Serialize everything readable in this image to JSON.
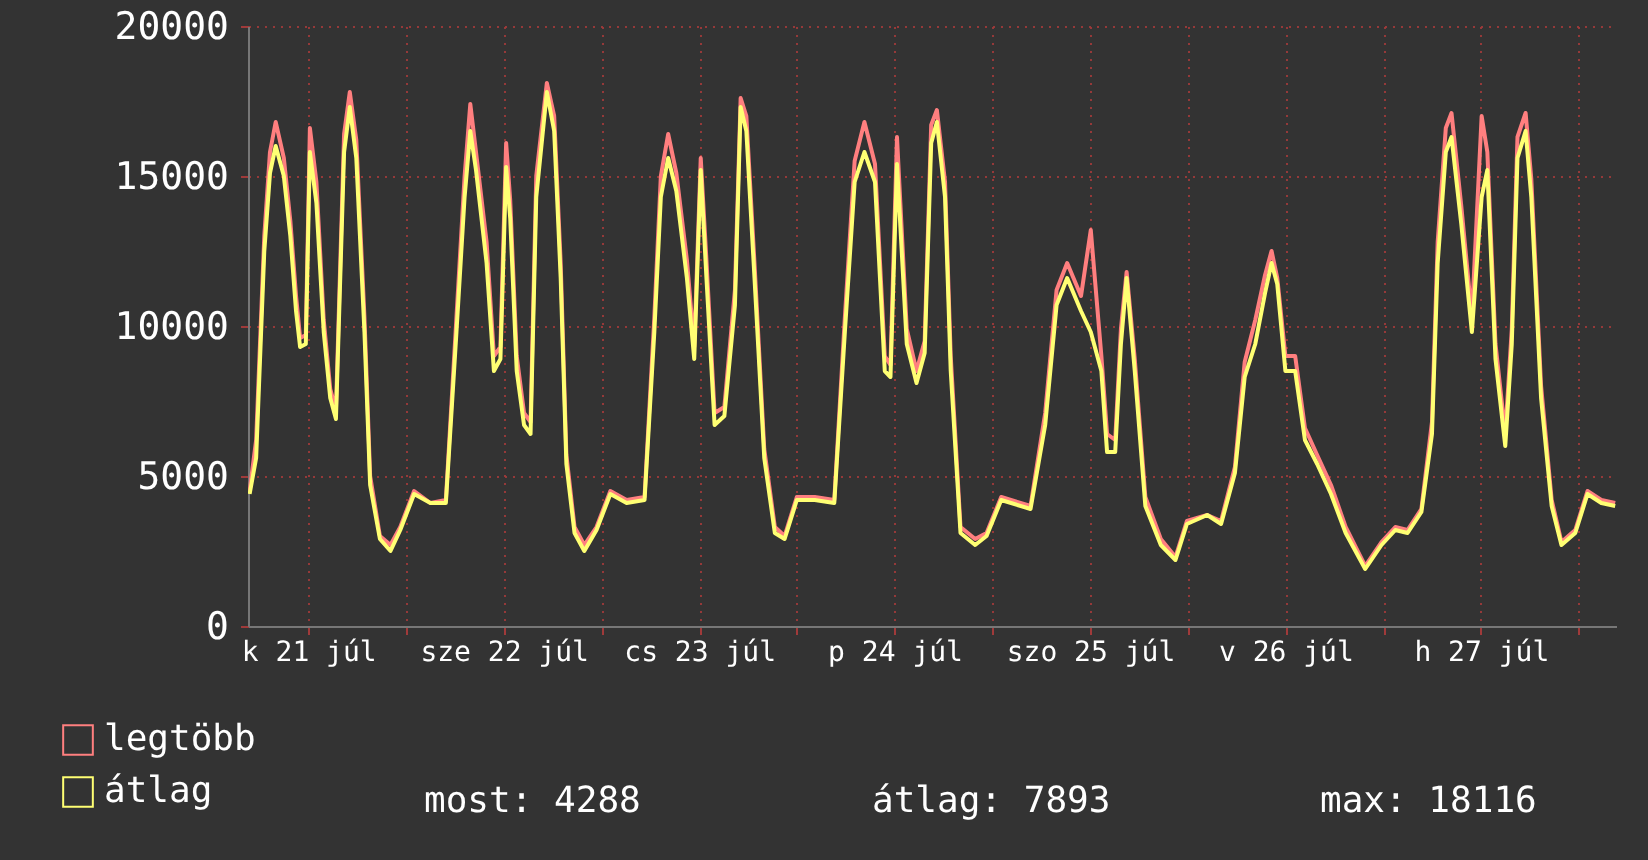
{
  "chart_data": {
    "type": "line",
    "x": [
      "--07-21T04:48",
      "--07-21T05:36",
      "--07-21T06:36",
      "--07-21T07:18",
      "--07-21T08:00",
      "--07-21T09:00",
      "--07-21T09:48",
      "--07-21T10:30",
      "--07-21T11:00",
      "--07-21T11:42",
      "--07-21T12:12",
      "--07-21T13:00",
      "--07-21T13:54",
      "--07-21T14:42",
      "--07-21T15:24",
      "--07-21T16:24",
      "--07-21T17:06",
      "--07-21T17:54",
      "--07-21T18:54",
      "--07-21T19:36",
      "--07-21T20:48",
      "--07-21T22:06",
      "--07-21T23:18",
      "--07-22T01:00",
      "--07-22T03:00",
      "--07-22T04:54",
      "--07-22T06:12",
      "--07-22T07:12",
      "--07-22T07:54",
      "--07-22T08:36",
      "--07-22T09:54",
      "--07-22T10:48",
      "--07-22T11:36",
      "--07-22T12:18",
      "--07-22T12:48",
      "--07-22T13:36",
      "--07-22T14:30",
      "--07-22T15:18",
      "--07-22T16:00",
      "--07-22T17:18",
      "--07-22T18:12",
      "--07-22T19:00",
      "--07-22T19:42",
      "--07-22T20:42",
      "--07-22T21:54",
      "--07-22T23:24",
      "--07-23T01:06",
      "--07-23T03:06",
      "--07-23T05:18",
      "--07-23T06:30",
      "--07-23T07:18",
      "--07-23T08:12",
      "--07-23T09:12",
      "--07-23T10:30",
      "--07-23T11:24",
      "--07-23T12:12",
      "--07-23T12:54",
      "--07-23T13:54",
      "--07-23T15:06",
      "--07-23T16:24",
      "--07-23T17:06",
      "--07-23T17:48",
      "--07-23T18:48",
      "--07-23T20:00",
      "--07-23T21:18",
      "--07-23T22:30",
      "--07-24T00:00",
      "--07-24T02:12",
      "--07-24T04:36",
      "--07-24T05:54",
      "--07-24T07:06",
      "--07-24T08:18",
      "--07-24T09:36",
      "--07-24T10:48",
      "--07-24T11:30",
      "--07-24T12:18",
      "--07-24T13:30",
      "--07-24T14:42",
      "--07-24T15:42",
      "--07-24T16:30",
      "--07-24T17:12",
      "--07-24T18:12",
      "--07-24T18:54",
      "--07-24T20:06",
      "--07-24T21:54",
      "--07-24T23:18",
      "--07-25T01:06",
      "--07-25T04:42",
      "--07-25T06:30",
      "--07-25T07:54",
      "--07-25T09:12",
      "--07-25T10:54",
      "--07-25T12:06",
      "--07-25T13:24",
      "--07-25T14:06",
      "--07-25T15:06",
      "--07-25T15:48",
      "--07-25T16:30",
      "--07-25T17:30",
      "--07-25T18:48",
      "--07-25T20:42",
      "--07-25T22:30",
      "--07-25T23:54",
      "--07-26T02:24",
      "--07-26T04:06",
      "--07-26T05:48",
      "--07-26T07:00",
      "--07-26T08:18",
      "--07-26T09:30",
      "--07-26T10:18",
      "--07-26T11:00",
      "--07-26T12:00",
      "--07-26T13:12",
      "--07-26T14:24",
      "--07-26T15:54",
      "--07-26T17:36",
      "--07-26T19:24",
      "--07-26T21:48",
      "--07-26T23:48",
      "--07-27T01:30",
      "--07-27T03:00",
      "--07-27T04:42",
      "--07-27T06:00",
      "--07-27T06:42",
      "--07-27T07:42",
      "--07-27T08:24",
      "--07-27T09:36",
      "--07-27T10:54",
      "--07-27T12:06",
      "--07-27T12:48",
      "--07-27T13:48",
      "--07-27T15:00",
      "--07-27T15:48",
      "--07-27T16:30",
      "--07-27T17:30",
      "--07-27T18:12",
      "--07-27T19:24",
      "--07-27T20:42",
      "--07-27T21:54",
      "--07-27T23:36",
      "--07-28T01:06",
      "--07-28T02:48",
      "--07-28T04:30"
    ],
    "series": [
      {
        "name": "legtöbb",
        "color": "#ff7f7f",
        "values": [
          4500,
          6200,
          13000,
          15800,
          16800,
          15600,
          13500,
          11000,
          9600,
          9700,
          16600,
          14800,
          10200,
          7900,
          7200,
          16400,
          17800,
          16200,
          10300,
          5000,
          3000,
          2700,
          3300,
          4500,
          4100,
          4200,
          10300,
          15000,
          17400,
          15800,
          12800,
          9000,
          9300,
          16100,
          14200,
          9000,
          7100,
          6800,
          15000,
          18100,
          17000,
          12100,
          5700,
          3300,
          2700,
          3300,
          4500,
          4200,
          4300,
          10300,
          15000,
          16400,
          15100,
          12200,
          9300,
          15600,
          12200,
          7100,
          7300,
          11200,
          17600,
          17000,
          12100,
          5900,
          3300,
          3000,
          4300,
          4300,
          4200,
          10300,
          15500,
          16800,
          15400,
          9000,
          8700,
          16300,
          9900,
          8500,
          9500,
          16700,
          17200,
          14800,
          9000,
          3300,
          2900,
          3100,
          4300,
          4000,
          7100,
          11200,
          12100,
          11000,
          13200,
          9000,
          6400,
          6200,
          9900,
          11800,
          8900,
          4300,
          2900,
          2300,
          3500,
          3700,
          3500,
          5300,
          8800,
          10200,
          11700,
          12500,
          11600,
          9000,
          9000,
          6600,
          5700,
          4700,
          3300,
          2000,
          2800,
          3300,
          3200,
          3900,
          6800,
          12800,
          16600,
          17100,
          14000,
          10300,
          17000,
          15800,
          9400,
          6400,
          9900,
          16300,
          17100,
          14900,
          8000,
          4200,
          2800,
          3200,
          4500,
          4200,
          4100
        ]
      },
      {
        "name": "átlag",
        "color": "#ffff73",
        "values": [
          4400,
          5600,
          12500,
          15100,
          16000,
          15000,
          13000,
          10500,
          9300,
          9400,
          15800,
          14100,
          9800,
          7600,
          6900,
          15800,
          17300,
          15600,
          9800,
          4700,
          2900,
          2500,
          3200,
          4400,
          4100,
          4100,
          9800,
          14300,
          16500,
          15200,
          12100,
          8500,
          8900,
          15300,
          13600,
          8500,
          6700,
          6400,
          14300,
          17800,
          16500,
          11600,
          5400,
          3100,
          2500,
          3200,
          4400,
          4100,
          4200,
          9800,
          14300,
          15600,
          14500,
          11600,
          8900,
          15200,
          11600,
          6700,
          7000,
          10700,
          17300,
          16500,
          11600,
          5600,
          3100,
          2900,
          4200,
          4200,
          4100,
          9800,
          14800,
          15800,
          14800,
          8500,
          8300,
          15400,
          9400,
          8100,
          9100,
          16100,
          16800,
          14300,
          8500,
          3100,
          2700,
          3000,
          4200,
          3900,
          6700,
          10700,
          11600,
          10500,
          9800,
          8500,
          5800,
          5800,
          9400,
          11600,
          8500,
          4000,
          2700,
          2200,
          3400,
          3700,
          3400,
          5100,
          8300,
          9400,
          11100,
          12100,
          11400,
          8500,
          8500,
          6200,
          5400,
          4400,
          3100,
          1900,
          2700,
          3200,
          3100,
          3800,
          6400,
          12100,
          15800,
          16300,
          13400,
          9800,
          14300,
          15200,
          8900,
          6000,
          9400,
          15600,
          16500,
          14300,
          7600,
          4000,
          2700,
          3100,
          4400,
          4100,
          4000
        ]
      }
    ],
    "xlim": [
      "--07-21T04:36",
      "--07-28T04:36"
    ],
    "xticks": [
      {
        "value": "--07-21T12:00",
        "label": "k 21 júl"
      },
      {
        "value": "--07-22T00:00",
        "label": null
      },
      {
        "value": "--07-22T12:00",
        "label": "sze 22 júl"
      },
      {
        "value": "--07-23T00:00",
        "label": null
      },
      {
        "value": "--07-23T12:00",
        "label": "cs 23 júl"
      },
      {
        "value": "--07-24T00:00",
        "label": null
      },
      {
        "value": "--07-24T12:00",
        "label": "p 24 júl"
      },
      {
        "value": "--07-25T00:00",
        "label": null
      },
      {
        "value": "--07-25T12:00",
        "label": "szo 25 júl"
      },
      {
        "value": "--07-26T00:00",
        "label": null
      },
      {
        "value": "--07-26T12:00",
        "label": "v 26 júl"
      },
      {
        "value": "--07-27T00:00",
        "label": null
      },
      {
        "value": "--07-27T12:00",
        "label": "h 27 júl"
      },
      {
        "value": "--07-28T00:00",
        "label": null
      }
    ],
    "ylim": [
      0,
      20000
    ],
    "yticks": [
      0,
      5000,
      10000,
      15000,
      20000
    ],
    "grid": true,
    "legend": "bottom left",
    "annotations": [
      "most: 4288",
      "átlag: 7893",
      "max: 18116"
    ]
  }
}
